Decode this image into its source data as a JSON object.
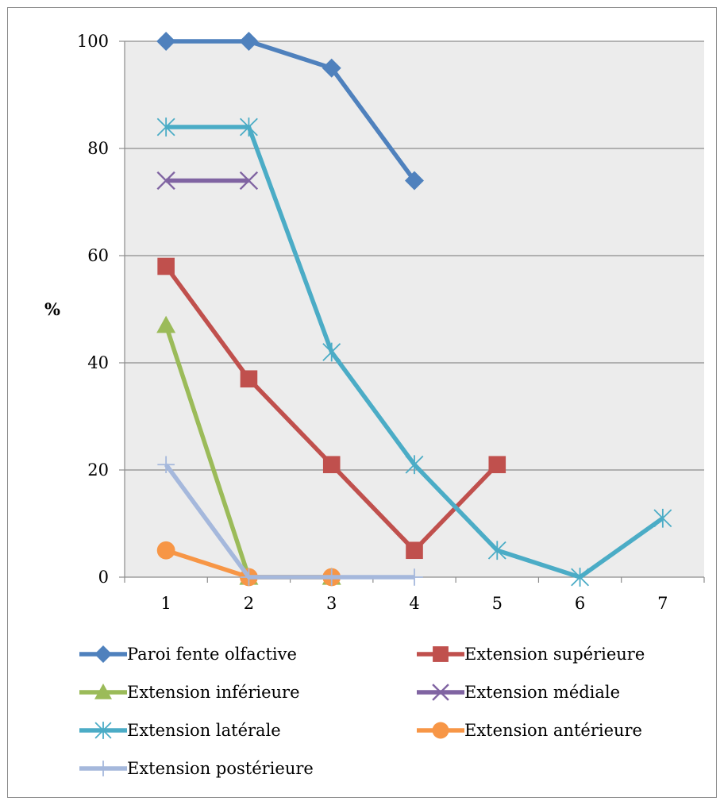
{
  "chart_data": {
    "type": "line",
    "title": "",
    "xlabel": "",
    "ylabel": "%",
    "categories": [
      "1",
      "2",
      "3",
      "4",
      "5",
      "6",
      "7"
    ],
    "ylim": [
      0,
      100
    ],
    "yticks": [
      0,
      20,
      40,
      60,
      80,
      100
    ],
    "grid": "horizontal",
    "legend_position": "bottom",
    "series": [
      {
        "name": "Paroi fente olfactive",
        "color": "#4f81bd",
        "marker": "diamond",
        "values": [
          100,
          100,
          95,
          74,
          null,
          null,
          null
        ]
      },
      {
        "name": "Extension supérieure",
        "color": "#c0504d",
        "marker": "square",
        "values": [
          58,
          37,
          21,
          5,
          21,
          null,
          null
        ]
      },
      {
        "name": "Extension inférieure",
        "color": "#9bbb59",
        "marker": "triangle",
        "values": [
          47,
          0,
          0,
          null,
          null,
          null,
          null
        ]
      },
      {
        "name": "Extension médiale",
        "color": "#8064a2",
        "marker": "x",
        "values": [
          74,
          74,
          null,
          null,
          null,
          null,
          null
        ]
      },
      {
        "name": "Extension latérale",
        "color": "#4bacc6",
        "marker": "asterisk",
        "values": [
          84,
          84,
          42,
          21,
          5,
          0,
          11
        ]
      },
      {
        "name": "Extension antérieure",
        "color": "#f79646",
        "marker": "circle",
        "values": [
          5,
          0,
          0,
          null,
          null,
          null,
          null
        ]
      },
      {
        "name": "Extension postérieure",
        "color": "#a5b8dc",
        "marker": "plus",
        "values": [
          21,
          0,
          0,
          0,
          null,
          null,
          null
        ]
      }
    ]
  }
}
